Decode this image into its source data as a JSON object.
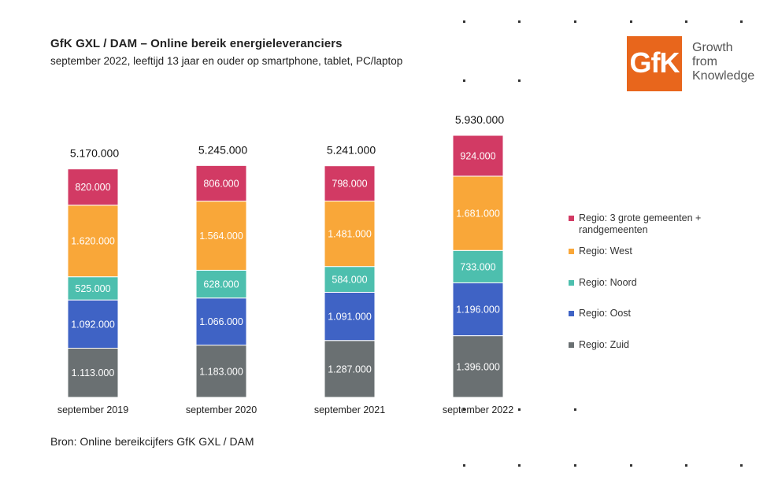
{
  "header": {
    "title": "GfK GXL / DAM – Online bereik energieleveranciers",
    "subtitle": "september 2022, leeftijd 13 jaar en ouder op smartphone, tablet, PC/laptop"
  },
  "logo": {
    "mark": "GfK",
    "tagline": [
      "Growth",
      "from",
      "Knowledge"
    ],
    "color": "#e8661c"
  },
  "footer": {
    "source": "Bron: Online bereikcijfers GfK GXL / DAM"
  },
  "chart_data": {
    "type": "bar",
    "stacked": true,
    "title": "GfK GXL / DAM – Online bereik energieleveranciers",
    "subtitle": "september 2022, leeftijd 13 jaar en ouder op smartphone, tablet, PC/laptop",
    "categories": [
      "september 2019",
      "september 2020",
      "september 2021",
      "september 2022"
    ],
    "totals": [
      5170000,
      5245000,
      5241000,
      5930000
    ],
    "total_labels": [
      "5.170.000",
      "5.245.000",
      "5.241.000",
      "5.930.000"
    ],
    "ylim": [
      0,
      6000000
    ],
    "grid": false,
    "legend_position": "right",
    "series": [
      {
        "name": "Regio: Zuid",
        "color": "#6a7072",
        "values": [
          1113000,
          1183000,
          1287000,
          1396000
        ],
        "labels": [
          "1.113.000",
          "1.183.000",
          "1.287.000",
          "1.396.000"
        ]
      },
      {
        "name": "Regio: Oost",
        "color": "#3f63c5",
        "values": [
          1092000,
          1066000,
          1091000,
          1196000
        ],
        "labels": [
          "1.092.000",
          "1.066.000",
          "1.091.000",
          "1.196.000"
        ]
      },
      {
        "name": "Regio: Noord",
        "color": "#4dbfae",
        "values": [
          525000,
          628000,
          584000,
          733000
        ],
        "labels": [
          "525.000",
          "628.000",
          "584.000",
          "733.000"
        ]
      },
      {
        "name": "Regio: West",
        "color": "#f9a739",
        "values": [
          1620000,
          1564000,
          1481000,
          1681000
        ],
        "labels": [
          "1.620.000",
          "1.564.000",
          "1.481.000",
          "1.681.000"
        ]
      },
      {
        "name": "Regio: 3 grote gemeenten + randgemeenten",
        "color": "#d23a64",
        "values": [
          820000,
          806000,
          798000,
          924000
        ],
        "labels": [
          "820.000",
          "806.000",
          "798.000",
          "924.000"
        ]
      }
    ],
    "legend_entries": [
      {
        "line1": "Regio: 3 grote gemeenten +",
        "line2": "randgemeenten",
        "color": "#d23a64"
      },
      {
        "line1": "Regio: West",
        "line2": "",
        "color": "#f9a739"
      },
      {
        "line1": "Regio: Noord",
        "line2": "",
        "color": "#4dbfae"
      },
      {
        "line1": "Regio: Oost",
        "line2": "",
        "color": "#3f63c5"
      },
      {
        "line1": "Regio: Zuid",
        "line2": "",
        "color": "#6a7072"
      }
    ]
  }
}
